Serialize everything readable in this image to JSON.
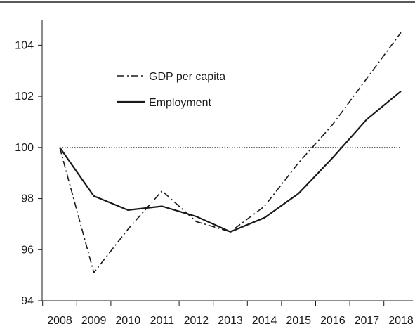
{
  "chart_data": {
    "type": "line",
    "title": "",
    "xlabel": "",
    "ylabel": "",
    "x": [
      2008,
      2009,
      2010,
      2011,
      2012,
      2013,
      2014,
      2015,
      2016,
      2017,
      2018
    ],
    "ylim": [
      94,
      105
    ],
    "yticks": [
      94,
      96,
      98,
      100,
      102,
      104
    ],
    "grid": false,
    "legend_position": "top-left",
    "reference_line": {
      "y": 100,
      "style": "dotted"
    },
    "series": [
      {
        "name": "GDP per capita",
        "style": "dash-dot",
        "color": "#1a1a1a",
        "values": [
          100,
          95.1,
          96.8,
          98.3,
          97.1,
          96.7,
          97.7,
          99.4,
          100.9,
          102.7,
          104.5
        ]
      },
      {
        "name": "Employment",
        "style": "solid",
        "color": "#1a1a1a",
        "values": [
          100,
          98.1,
          97.55,
          97.7,
          97.3,
          96.7,
          97.25,
          98.2,
          99.6,
          101.1,
          102.2
        ]
      }
    ]
  },
  "colors": {
    "axis": "#1a1a1a",
    "line": "#1a1a1a",
    "reference": "#333333",
    "top_rule": "#222222"
  }
}
